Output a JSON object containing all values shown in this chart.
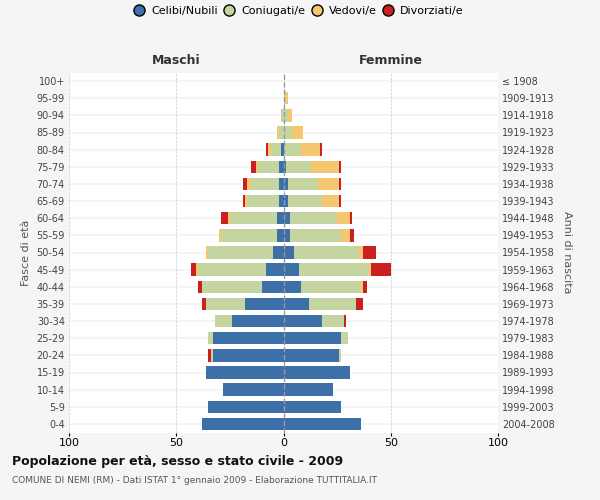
{
  "age_groups": [
    "0-4",
    "5-9",
    "10-14",
    "15-19",
    "20-24",
    "25-29",
    "30-34",
    "35-39",
    "40-44",
    "45-49",
    "50-54",
    "55-59",
    "60-64",
    "65-69",
    "70-74",
    "75-79",
    "80-84",
    "85-89",
    "90-94",
    "95-99",
    "100+"
  ],
  "birth_years": [
    "2004-2008",
    "1999-2003",
    "1994-1998",
    "1989-1993",
    "1984-1988",
    "1979-1983",
    "1974-1978",
    "1969-1973",
    "1964-1968",
    "1959-1963",
    "1954-1958",
    "1949-1953",
    "1944-1948",
    "1939-1943",
    "1934-1938",
    "1929-1933",
    "1924-1928",
    "1919-1923",
    "1914-1918",
    "1909-1913",
    "≤ 1908"
  ],
  "colors": {
    "celibi": "#3d6fa8",
    "coniugati": "#c5d5a0",
    "vedovi": "#f5c870",
    "divorziati": "#cc2020"
  },
  "males": {
    "celibi": [
      38,
      35,
      28,
      36,
      33,
      33,
      24,
      18,
      10,
      8,
      5,
      3,
      3,
      2,
      2,
      2,
      1,
      0,
      0,
      0,
      0
    ],
    "coniugati": [
      0,
      0,
      0,
      0,
      1,
      2,
      8,
      18,
      28,
      32,
      30,
      26,
      22,
      15,
      13,
      10,
      5,
      2,
      1,
      0,
      0
    ],
    "vedovi": [
      0,
      0,
      0,
      0,
      0,
      0,
      0,
      0,
      0,
      1,
      1,
      1,
      1,
      1,
      2,
      1,
      1,
      1,
      0,
      0,
      0
    ],
    "divorziati": [
      0,
      0,
      0,
      0,
      1,
      0,
      0,
      2,
      2,
      2,
      0,
      0,
      3,
      1,
      2,
      2,
      1,
      0,
      0,
      0,
      0
    ]
  },
  "females": {
    "celibi": [
      36,
      27,
      23,
      31,
      26,
      27,
      18,
      12,
      8,
      7,
      5,
      3,
      3,
      2,
      2,
      1,
      0,
      0,
      0,
      0,
      0
    ],
    "coniugati": [
      0,
      0,
      0,
      0,
      1,
      3,
      10,
      22,
      28,
      33,
      30,
      24,
      22,
      16,
      14,
      12,
      8,
      4,
      2,
      1,
      0
    ],
    "vedovi": [
      0,
      0,
      0,
      0,
      0,
      0,
      0,
      0,
      1,
      1,
      2,
      4,
      6,
      8,
      10,
      13,
      9,
      5,
      2,
      1,
      0
    ],
    "divorziati": [
      0,
      0,
      0,
      0,
      0,
      0,
      1,
      3,
      2,
      9,
      6,
      2,
      1,
      1,
      1,
      1,
      1,
      0,
      0,
      0,
      0
    ]
  },
  "title": "Popolazione per età, sesso e stato civile - 2009",
  "subtitle": "COMUNE DI NEMI (RM) - Dati ISTAT 1° gennaio 2009 - Elaborazione TUTTITALIA.IT",
  "label_maschi": "Maschi",
  "label_femmine": "Femmine",
  "ylabel_left": "Fasce di età",
  "ylabel_right": "Anni di nascita",
  "xlim": 100,
  "legend_labels": [
    "Celibi/Nubili",
    "Coniugati/e",
    "Vedovi/e",
    "Divorziati/e"
  ],
  "bg_color": "#f5f5f5",
  "plot_bg": "#ffffff",
  "grid_color": "#cccccc",
  "center_line_color": "#999999"
}
